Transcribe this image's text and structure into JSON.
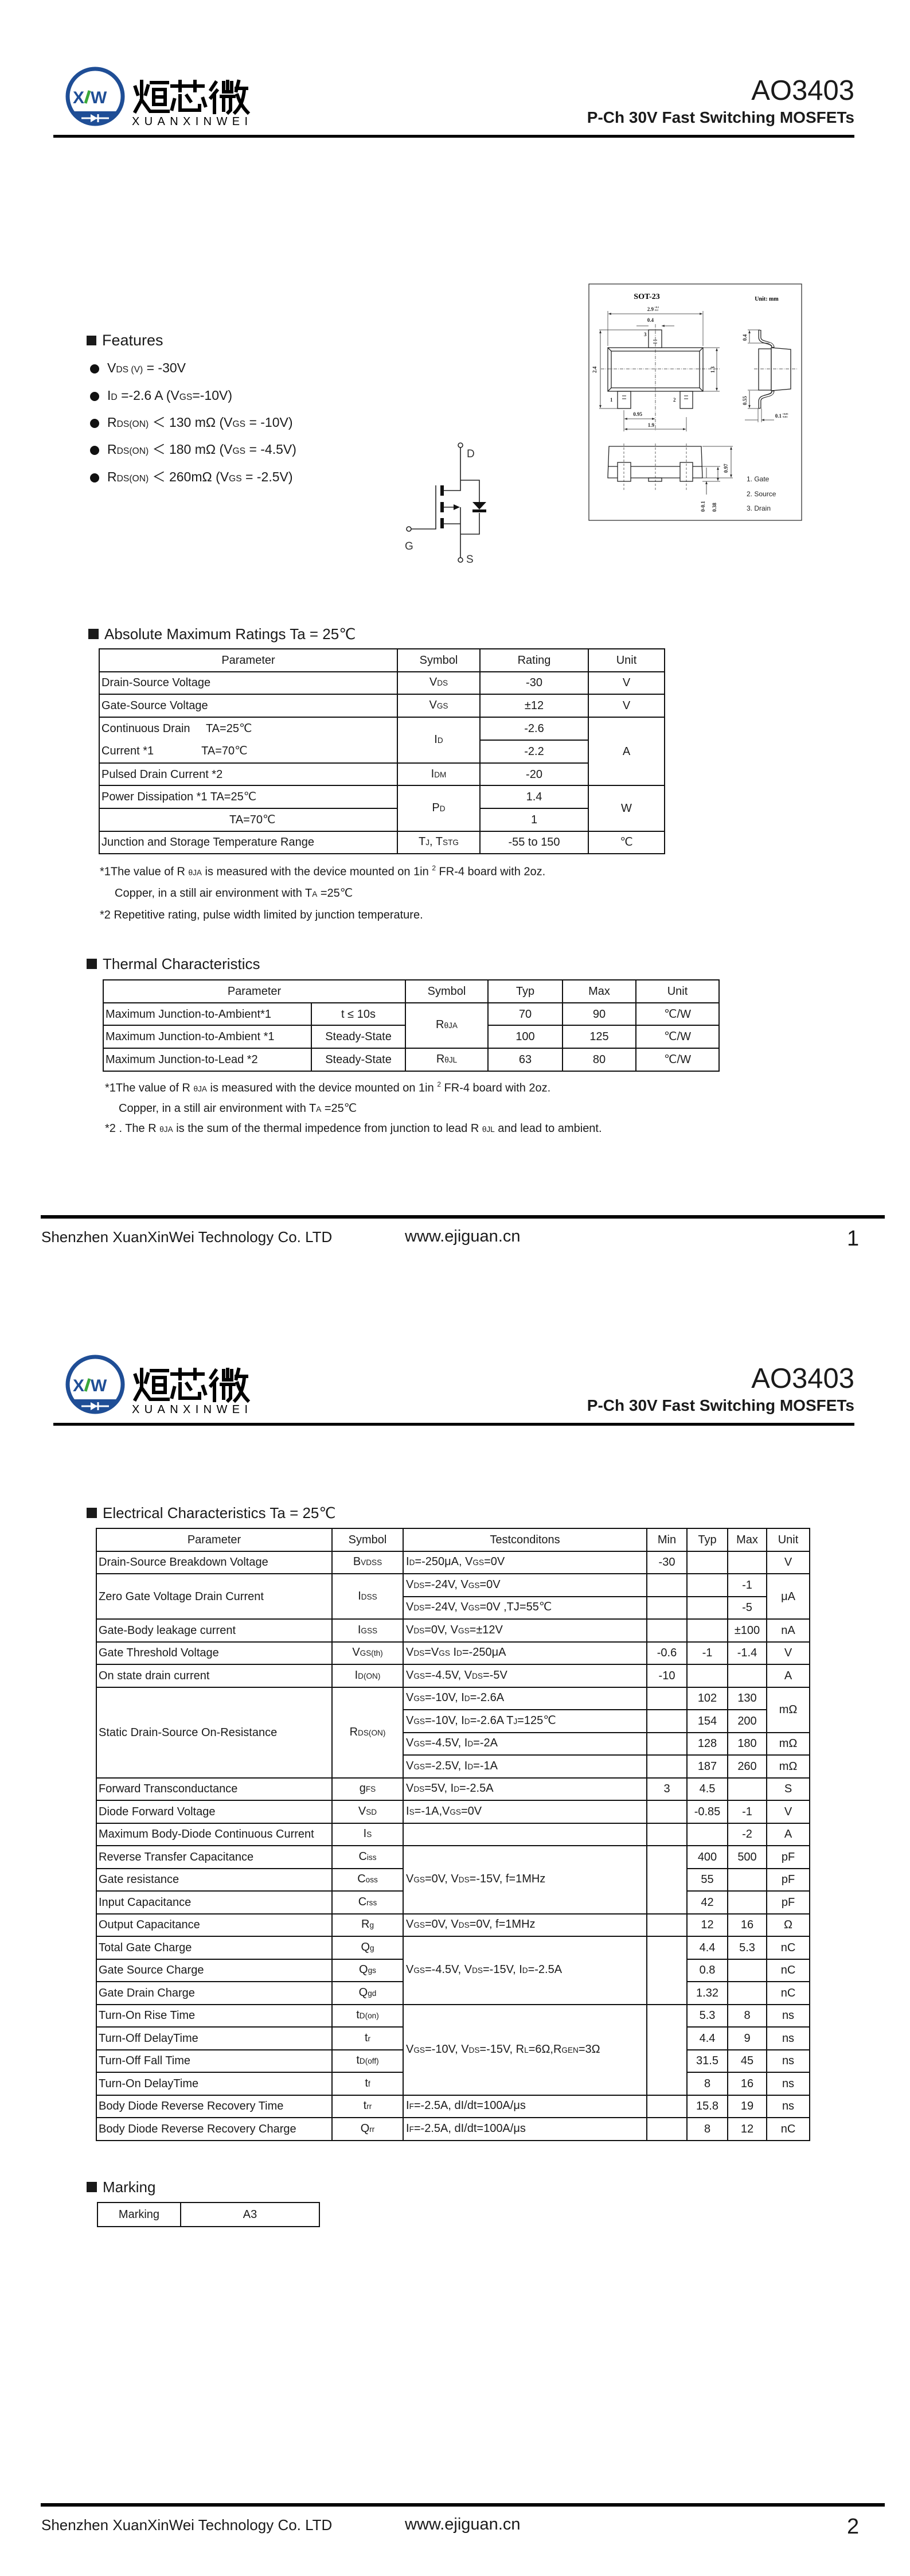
{
  "header": {
    "logo_text": "烜芯微",
    "logo_latin": "XUANXINWEI",
    "logo_mark": "XW",
    "brand_color": "#1f4e96",
    "accent_color": "#3aa83a",
    "part": "AO3403",
    "subtitle": "P-Ch 30V Fast Switching MOSFETs"
  },
  "features": {
    "title": "Features",
    "items": [
      [
        "V",
        "DS (V)",
        " = -30V"
      ],
      [
        "I",
        "D",
        " =-2.6 A (V",
        "GS",
        "=-10V)"
      ],
      [
        "R",
        "DS(ON)",
        " ＜ 130 mΩ  (V",
        "GS",
        " = -10V)"
      ],
      [
        "R",
        "DS(ON)",
        " ＜ 180 mΩ  (V",
        "GS",
        " = -4.5V)"
      ],
      [
        "R",
        "DS(ON)",
        " ＜ 260mΩ  (V",
        "GS",
        " = -2.5V)"
      ]
    ]
  },
  "package": {
    "title": "SOT-23",
    "unit": "Unit: mm",
    "dims": {
      "length": "2.9",
      "lead_width": "0.4",
      "width": "2.4",
      "body_width": "1.3",
      "pitch": "0.95",
      "span": "1.9",
      "lead_top": "0.4",
      "lead_foot": "0.55",
      "lead_thick": "0.1",
      "height": "0.97",
      "standoff": "0-0.1",
      "lead_h": "0.38",
      "tol_plus": "+0.1",
      "tol_minus": "-0.1",
      "tol_thick_plus": "+0.05",
      "tol_thick_minus": "-0.01"
    },
    "pin_labels": [
      "1",
      "2",
      "3"
    ],
    "pins": [
      "1. Gate",
      "2. Source",
      "3. Drain"
    ]
  },
  "schematic": {
    "drain": "D",
    "gate": "G",
    "source": "S"
  },
  "abs_max": {
    "title": "Absolute Maximum Ratings Ta = 25℃",
    "headers": [
      "Parameter",
      "Symbol",
      "Rating",
      "Unit"
    ],
    "rows": [
      {
        "p": "Drain-Source Voltage",
        "s": [
          "V",
          "DS"
        ],
        "r": "-30",
        "u": "V"
      },
      {
        "p": "Gate-Source Voltage",
        "s": [
          "V",
          "GS"
        ],
        "r": "±12",
        "u": "V"
      },
      {
        "p": "Continuous Drain     TA=25℃\nCurrent *1               TA=70℃",
        "s": [
          "I",
          "D"
        ],
        "r": "-2.6",
        "u": "A"
      },
      {
        "r": "-2.2"
      },
      {
        "p": "Pulsed Drain Current *2",
        "s": [
          "I",
          "DM"
        ],
        "r": "-20"
      },
      {
        "p": "Power Dissipation *1    TA=25℃",
        "s": [
          "P",
          "D"
        ],
        "r": "1.4",
        "u": "W"
      },
      {
        "p": "TA=70℃",
        "r": "1"
      },
      {
        "p": "Junction and Storage Temperature Range",
        "s": [
          "T",
          "J",
          ", T",
          "STG"
        ],
        "r": "-55 to 150",
        "u": "℃"
      }
    ],
    "notes": {
      "n1a": "*1The value of R ",
      "n1sub": "θJA",
      "n1b": " is measured with the device mounted on 1in ",
      "n1sup": "2",
      "n1c": " FR-4 board with 2oz.",
      "n2a": "Copper, in a still air environment with T",
      "n2sub": "A",
      "n2b": " =25℃",
      "n3": "*2 Repetitive rating, pulse width limited by junction temperature."
    }
  },
  "thermal": {
    "title": "Thermal Characteristics",
    "headers": [
      "Parameter",
      "Symbol",
      "Typ",
      "Max",
      "Unit"
    ],
    "rows": [
      {
        "p": "Maximum Junction-to-Ambient*1",
        "c": "t ≤ 10s",
        "s": [
          "R",
          "θJA"
        ],
        "typ": "70",
        "max": "90",
        "u": "℃/W"
      },
      {
        "p": "Maximum Junction-to-Ambient *1",
        "c": "Steady-State",
        "typ": "100",
        "max": "125",
        "u": "℃/W"
      },
      {
        "p": "Maximum Junction-to-Lead *2",
        "c": "Steady-State",
        "s": [
          "R",
          "θJL"
        ],
        "typ": "63",
        "max": "80",
        "u": "℃/W"
      }
    ],
    "notes": {
      "n1a": "*1The value of R ",
      "n1sub": "θJA",
      "n1b": " is measured with the device mounted on 1in ",
      "n1sup": "2",
      "n1c": " FR-4 board with 2oz.",
      "n2a": "Copper, in a still air environment with T",
      "n2sub": "A",
      "n2b": " =25℃",
      "n3a": "*2 . The R ",
      "n3sub1": "θJA",
      "n3b": " is the sum of the thermal impedence from junction to lead R ",
      "n3sub2": "θJL",
      "n3c": " and lead to ambient."
    }
  },
  "electrical": {
    "title": "Electrical Characteristics Ta = 25℃",
    "headers": [
      "Parameter",
      "Symbol",
      "Testconditons",
      "Min",
      "Typ",
      "Max",
      "Unit"
    ],
    "rows": [
      {
        "p": "Drain-Source Breakdown Voltage",
        "s": [
          "B",
          "VDSS"
        ],
        "c": [
          "I",
          "D",
          "=-250μA, V",
          "GS",
          "=0V"
        ],
        "min": "-30",
        "u": "V"
      },
      {
        "p": "Zero Gate Voltage Drain Current",
        "s": [
          "I",
          "DSS"
        ],
        "c": [
          "V",
          "DS",
          "=-24V, V",
          "GS",
          "=0V"
        ],
        "max": "-1",
        "u": "μA"
      },
      {
        "c": [
          "V",
          "DS",
          "=-24V, V",
          "GS",
          "=0V ,TJ=55℃"
        ],
        "max": "-5"
      },
      {
        "p": "Gate-Body leakage current",
        "s": [
          "I",
          "GSS"
        ],
        "c": [
          "V",
          "DS",
          "=0V, V",
          "GS",
          "=±12V"
        ],
        "max": "±100",
        "u": "nA"
      },
      {
        "p": "Gate Threshold Voltage",
        "s": [
          "V",
          "GS(th)"
        ],
        "c": [
          "V",
          "DS",
          "=V",
          "GS",
          " I",
          "D",
          "=-250μA"
        ],
        "min": "-0.6",
        "typ": "-1",
        "max": "-1.4",
        "u": "V"
      },
      {
        "p": "On state drain current",
        "s": [
          "I",
          "D(ON)"
        ],
        "c": [
          "V",
          "GS",
          "=-4.5V, V",
          "DS",
          "=-5V"
        ],
        "min": "-10",
        "u": "A"
      },
      {
        "p": "Static Drain-Source On-Resistance",
        "s": [
          "R",
          "DS(ON)"
        ],
        "c": [
          "V",
          "GS",
          "=-10V, I",
          "D",
          "=-2.6A"
        ],
        "typ": "102",
        "max": "130",
        "u": "mΩ"
      },
      {
        "c": [
          "V",
          "GS",
          "=-10V, I",
          "D",
          "=-2.6A           T",
          "J",
          "=125℃"
        ],
        "typ": "154",
        "max": "200"
      },
      {
        "c": [
          "V",
          "GS",
          "=-4.5V, I",
          "D",
          "=-2A"
        ],
        "typ": "128",
        "max": "180",
        "u": "mΩ"
      },
      {
        "c": [
          "V",
          "GS",
          "=-2.5V, I",
          "D",
          "=-1A"
        ],
        "typ": "187",
        "max": "260",
        "u": "mΩ"
      },
      {
        "p": "Forward Transconductance",
        "s": [
          "g",
          "FS"
        ],
        "c": [
          "V",
          "DS",
          "=5V, I",
          "D",
          "=-2.5A"
        ],
        "min": "3",
        "typ": "4.5",
        "u": "S"
      },
      {
        "p": "Diode Forward Voltage",
        "s": [
          "V",
          "SD"
        ],
        "c": [
          "I",
          "S",
          "=-1A,V",
          "GS",
          "=0V"
        ],
        "typ": "-0.85",
        "max": "-1",
        "u": "V"
      },
      {
        "p": "Maximum Body-Diode Continuous Current",
        "s": [
          "I",
          "S"
        ],
        "max": "-2",
        "u": "A"
      },
      {
        "p": "Reverse Transfer Capacitance",
        "s": [
          "C",
          "iss"
        ],
        "c": [
          "V",
          "GS",
          "=0V, V",
          "DS",
          "=-15V, f=1MHz"
        ],
        "typ": "400",
        "max": "500",
        "u": "pF"
      },
      {
        "p": "Gate resistance",
        "s": [
          "C",
          "oss"
        ],
        "typ": "55",
        "u": "pF"
      },
      {
        "p": "Input Capacitance",
        "s": [
          "C",
          "rss"
        ],
        "typ": "42",
        "u": "pF"
      },
      {
        "p": "Output Capacitance",
        "s": [
          "R",
          "g"
        ],
        "c": [
          "V",
          "GS",
          "=0V, V",
          "DS",
          "=0V, f=1MHz"
        ],
        "typ": "12",
        "max": "16",
        "u": "Ω"
      },
      {
        "p": "Total Gate Charge",
        "s": [
          "Q",
          "g"
        ],
        "c": [
          "V",
          "GS",
          "=-4.5V, V",
          "DS",
          "=-15V, I",
          "D",
          "=-2.5A"
        ],
        "typ": "4.4",
        "max": "5.3",
        "u": "nC"
      },
      {
        "p": "Gate Source Charge",
        "s": [
          "Q",
          "gs"
        ],
        "typ": "0.8",
        "u": "nC"
      },
      {
        "p": "Gate Drain Charge",
        "s": [
          "Q",
          "gd"
        ],
        "typ": "1.32",
        "u": "nC"
      },
      {
        "p": "Turn-On Rise Time",
        "s": [
          "t",
          "D(on)"
        ],
        "c": [
          "V",
          "GS",
          "=-10V, V",
          "DS",
          "=-15V, R",
          "L",
          "=6Ω,R",
          "GEN",
          "=3Ω"
        ],
        "typ": "5.3",
        "max": "8",
        "u": "ns"
      },
      {
        "p": "Turn-Off DelayTime",
        "s": [
          "t",
          "r"
        ],
        "typ": "4.4",
        "max": "9",
        "u": "ns"
      },
      {
        "p": "Turn-Off Fall Time",
        "s": [
          "t",
          "D(off)"
        ],
        "typ": "31.5",
        "max": "45",
        "u": "ns"
      },
      {
        "p": "Turn-On DelayTime",
        "s": [
          "t",
          "f"
        ],
        "typ": "8",
        "max": "16",
        "u": "ns"
      },
      {
        "p": "Body Diode Reverse Recovery Time",
        "s": [
          "t",
          "rr"
        ],
        "c": [
          "I",
          "F",
          "=-2.5A, dI/dt=100A/μs"
        ],
        "typ": "15.8",
        "max": "19",
        "u": "ns"
      },
      {
        "p": "Body Diode Reverse Recovery Charge",
        "s": [
          "Q",
          "rr"
        ],
        "c": [
          "I",
          "F",
          "=-2.5A, dI/dt=100A/μs"
        ],
        "typ": "8",
        "max": "12",
        "u": "nC"
      }
    ]
  },
  "marking": {
    "title": "Marking",
    "label": "Marking",
    "value": "A3"
  },
  "footer": {
    "company": "Shenzhen XuanXinWei Technology Co. LTD",
    "url": "www.ejiguan.cn",
    "pages": [
      "1",
      "2"
    ]
  }
}
